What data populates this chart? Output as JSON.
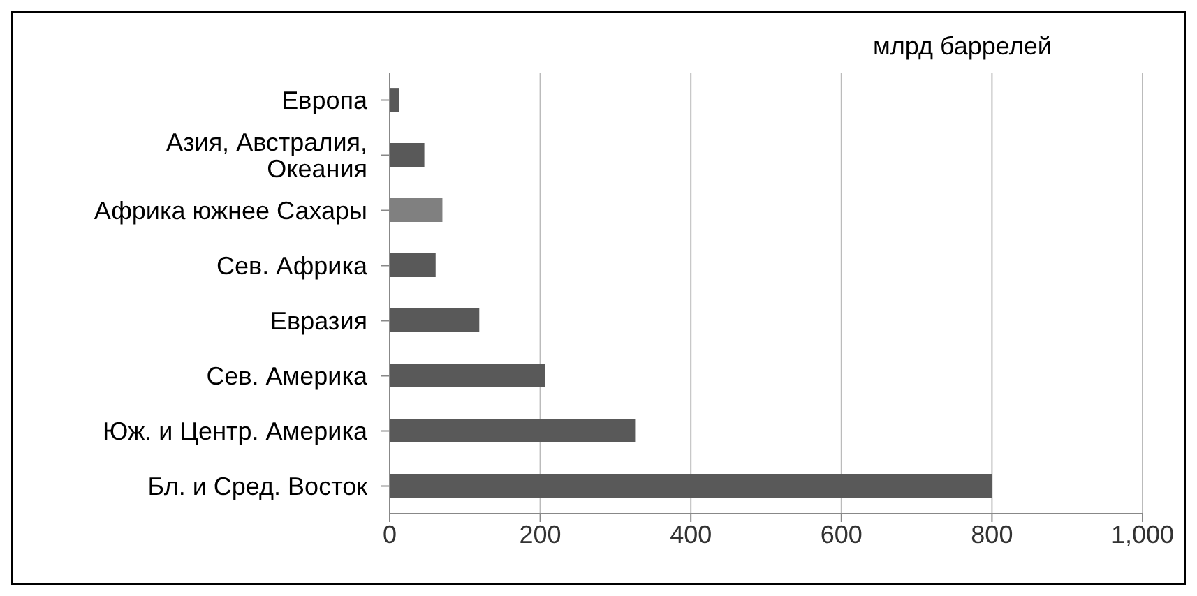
{
  "chart_data": {
    "type": "bar",
    "orientation": "horizontal",
    "categories": [
      "Европа",
      "Азия, Австралия, Океания",
      "Африка южнее Сахары",
      "Сев. Африка",
      "Евразия",
      "Сев. Америка",
      "Юж. и Центр. Америка",
      "Бл. и Сред. Восток"
    ],
    "values": [
      13,
      46,
      70,
      61,
      119,
      206,
      326,
      800
    ],
    "colors": [
      "#595959",
      "#595959",
      "#808080",
      "#595959",
      "#595959",
      "#595959",
      "#595959",
      "#595959"
    ],
    "xlim": [
      0,
      1000
    ],
    "xticks": [
      0,
      200,
      400,
      600,
      800,
      {
        "value": 1000,
        "label": "1,000"
      }
    ],
    "grid": "x",
    "annotations": [
      "млрд баррелей"
    ]
  }
}
